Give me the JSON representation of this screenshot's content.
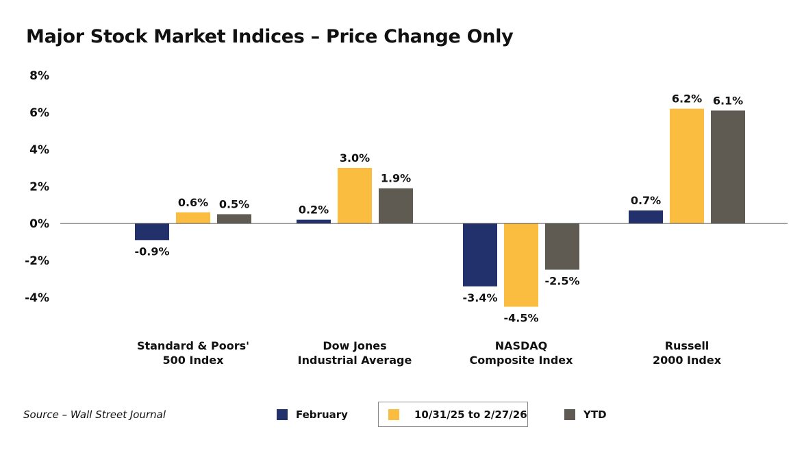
{
  "chart_data": {
    "type": "bar",
    "title": "Major Stock Market Indices – Price Change Only",
    "categories": [
      [
        "Standard & Poors'",
        "500 Index"
      ],
      [
        "Dow Jones",
        "Industrial Average"
      ],
      [
        "NASDAQ",
        "Composite Index"
      ],
      [
        "Russell",
        "2000 Index"
      ]
    ],
    "series": [
      {
        "name": "February",
        "color": "#22306b",
        "values": [
          -0.9,
          0.2,
          -3.4,
          0.7
        ],
        "labels": [
          "-0.9%",
          "0.2%",
          "-3.4%",
          "0.7%"
        ]
      },
      {
        "name": "10/31/25 to 2/27/26",
        "color": "#fbbd3f",
        "values": [
          0.6,
          3.0,
          -4.5,
          6.2
        ],
        "labels": [
          "0.6%",
          "3.0%",
          "-4.5%",
          "6.2%"
        ]
      },
      {
        "name": "YTD",
        "color": "#5f5b53",
        "values": [
          0.5,
          1.9,
          -2.5,
          6.1
        ],
        "labels": [
          "0.5%",
          "1.9%",
          "-2.5%",
          "6.1%"
        ]
      }
    ],
    "yticks": [
      "8%",
      "6%",
      "4%",
      "2%",
      "0%",
      "-2%",
      "-4%"
    ],
    "ytick_values": [
      8,
      6,
      4,
      2,
      0,
      -2,
      -4
    ],
    "ylim": [
      -4,
      8
    ],
    "grid": false,
    "legend": "bottom",
    "source": "Source – Wall Street Journal"
  }
}
